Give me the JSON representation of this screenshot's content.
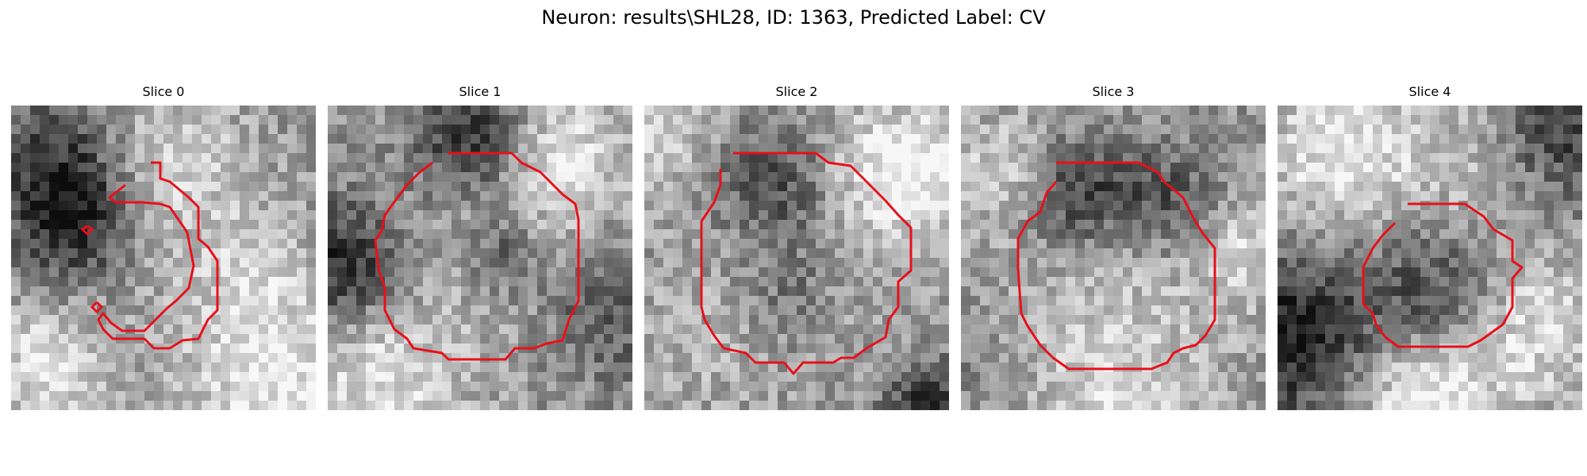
{
  "figure": {
    "title": "Neuron: results\\SHL28, ID: 1363, Predicted Label: CV"
  },
  "colors": {
    "contour": "#e8101a",
    "background": "#ffffff"
  },
  "panels": [
    {
      "title": "Slice 0"
    },
    {
      "title": "Slice 1"
    },
    {
      "title": "Slice 2"
    },
    {
      "title": "Slice 3"
    },
    {
      "title": "Slice 4"
    }
  ]
}
